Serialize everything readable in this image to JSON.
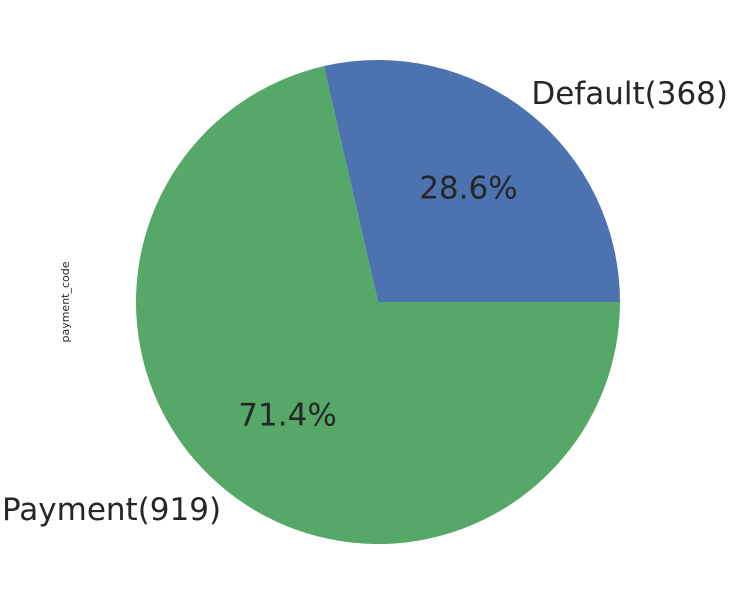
{
  "chart_data": {
    "type": "pie",
    "ylabel": "payment_code",
    "slices": [
      {
        "label": "Default(368)",
        "value": 368,
        "percent_label": "28.6%",
        "color": "#4C72B0"
      },
      {
        "label": "Payment(919)",
        "value": 919,
        "percent_label": "71.4%",
        "color": "#55A868"
      }
    ],
    "start_angle_deg": 0,
    "direction": "counterclockwise"
  }
}
